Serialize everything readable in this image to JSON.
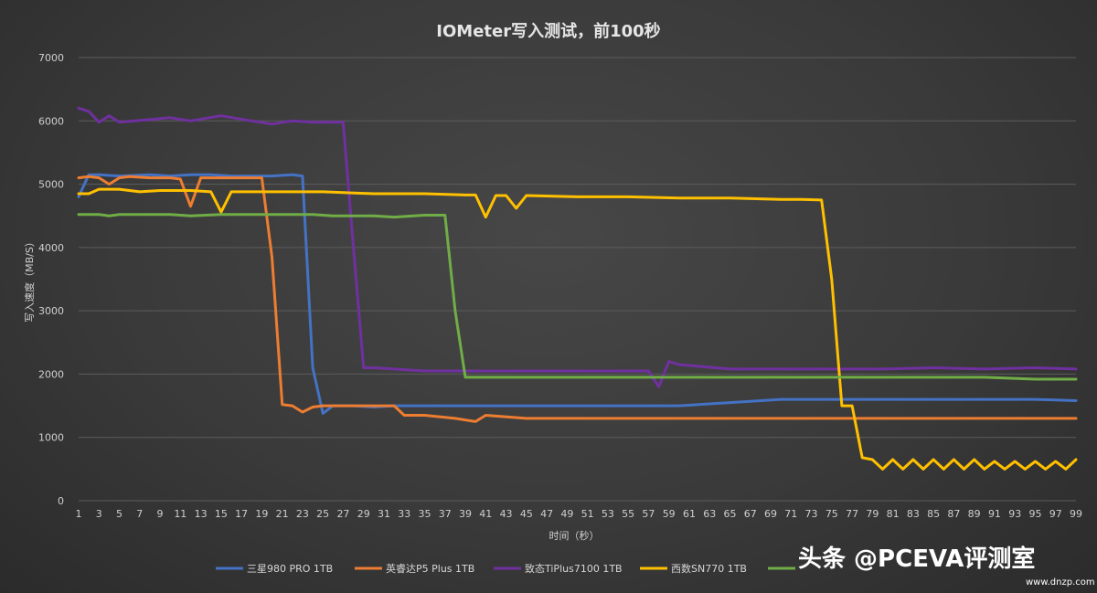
{
  "chart_data": {
    "type": "line",
    "title": "IOMeter写入测试，前100秒",
    "xlabel": "时间（秒）",
    "ylabel": "写入速度（MB/S）",
    "xlim": [
      1,
      99
    ],
    "ylim": [
      0,
      7000
    ],
    "yticks": [
      0,
      1000,
      2000,
      3000,
      4000,
      5000,
      6000,
      7000
    ],
    "grid": "horizontal",
    "legend": "bottom",
    "series": [
      {
        "name": "三星980 PRO 1TB",
        "color": "#4472c4",
        "x": [
          1,
          2,
          3,
          5,
          8,
          10,
          12,
          14,
          16,
          18,
          20,
          22,
          23,
          24,
          25,
          26,
          28,
          30,
          32,
          35,
          40,
          45,
          50,
          55,
          60,
          65,
          70,
          75,
          80,
          85,
          90,
          95,
          99
        ],
        "values": [
          4800,
          5150,
          5150,
          5130,
          5150,
          5130,
          5150,
          5150,
          5130,
          5130,
          5130,
          5150,
          5130,
          2100,
          1380,
          1500,
          1500,
          1480,
          1500,
          1500,
          1500,
          1500,
          1500,
          1500,
          1500,
          1550,
          1600,
          1600,
          1600,
          1600,
          1600,
          1600,
          1580
        ]
      },
      {
        "name": "英睿达P5 Plus 1TB",
        "color": "#ed7d31",
        "x": [
          1,
          2,
          3,
          4,
          5,
          6,
          8,
          10,
          11,
          12,
          13,
          14,
          16,
          18,
          19,
          20,
          21,
          22,
          23,
          24,
          25,
          30,
          32,
          33,
          35,
          38,
          40,
          41,
          45,
          50,
          55,
          60,
          65,
          70,
          75,
          76,
          80,
          85,
          90,
          95,
          99
        ],
        "values": [
          5100,
          5120,
          5100,
          5000,
          5100,
          5120,
          5100,
          5100,
          5080,
          4650,
          5100,
          5100,
          5100,
          5100,
          5100,
          3850,
          1520,
          1500,
          1400,
          1480,
          1500,
          1500,
          1500,
          1350,
          1350,
          1300,
          1250,
          1350,
          1300,
          1300,
          1300,
          1300,
          1300,
          1300,
          1300,
          1300,
          1300,
          1300,
          1300,
          1300,
          1300
        ]
      },
      {
        "name": "致态TiPlus7100 1TB",
        "color": "#7030a0",
        "x": [
          1,
          2,
          3,
          4,
          5,
          8,
          10,
          12,
          15,
          18,
          20,
          22,
          24,
          26,
          27,
          28,
          29,
          30,
          35,
          40,
          45,
          50,
          55,
          57,
          58,
          59,
          60,
          65,
          70,
          75,
          80,
          85,
          90,
          95,
          99
        ],
        "values": [
          6200,
          6150,
          5980,
          6080,
          5980,
          6020,
          6050,
          6000,
          6080,
          6000,
          5950,
          6000,
          5980,
          5980,
          5980,
          4000,
          2100,
          2100,
          2050,
          2050,
          2050,
          2050,
          2050,
          2050,
          1800,
          2200,
          2150,
          2080,
          2080,
          2080,
          2080,
          2100,
          2080,
          2100,
          2080
        ]
      },
      {
        "name": "西数SN770 1TB",
        "color": "#ffc000",
        "x": [
          1,
          2,
          3,
          5,
          7,
          9,
          12,
          14,
          15,
          16,
          18,
          20,
          25,
          30,
          35,
          39,
          40,
          41,
          42,
          43,
          44,
          45,
          50,
          55,
          60,
          65,
          70,
          72,
          74,
          75,
          76,
          77,
          78,
          79,
          80,
          81,
          82,
          83,
          84,
          85,
          86,
          87,
          88,
          89,
          90,
          91,
          92,
          93,
          94,
          95,
          96,
          97,
          98,
          99
        ],
        "values": [
          4850,
          4850,
          4920,
          4920,
          4880,
          4900,
          4900,
          4880,
          4560,
          4880,
          4880,
          4880,
          4880,
          4850,
          4850,
          4830,
          4830,
          4480,
          4820,
          4820,
          4620,
          4820,
          4800,
          4800,
          4780,
          4780,
          4760,
          4760,
          4750,
          3500,
          1500,
          1500,
          680,
          650,
          500,
          650,
          500,
          650,
          500,
          650,
          500,
          650,
          500,
          650,
          500,
          620,
          500,
          620,
          500,
          620,
          500,
          620,
          500,
          650
        ]
      },
      {
        "name": "",
        "color": "#70ad47",
        "x": [
          1,
          2,
          3,
          4,
          5,
          8,
          10,
          12,
          15,
          18,
          20,
          22,
          24,
          26,
          28,
          30,
          32,
          35,
          36,
          37,
          38,
          39,
          40,
          45,
          50,
          55,
          60,
          65,
          70,
          75,
          80,
          85,
          90,
          95,
          99
        ],
        "values": [
          4520,
          4520,
          4520,
          4500,
          4520,
          4520,
          4520,
          4500,
          4520,
          4520,
          4520,
          4520,
          4520,
          4500,
          4500,
          4500,
          4480,
          4510,
          4510,
          4510,
          3000,
          1950,
          1950,
          1950,
          1950,
          1950,
          1950,
          1950,
          1950,
          1950,
          1950,
          1950,
          1950,
          1920,
          1920
        ]
      }
    ]
  },
  "watermark": {
    "main": "头条 @PCEVA评测室",
    "site": "www.dnzp.com"
  }
}
